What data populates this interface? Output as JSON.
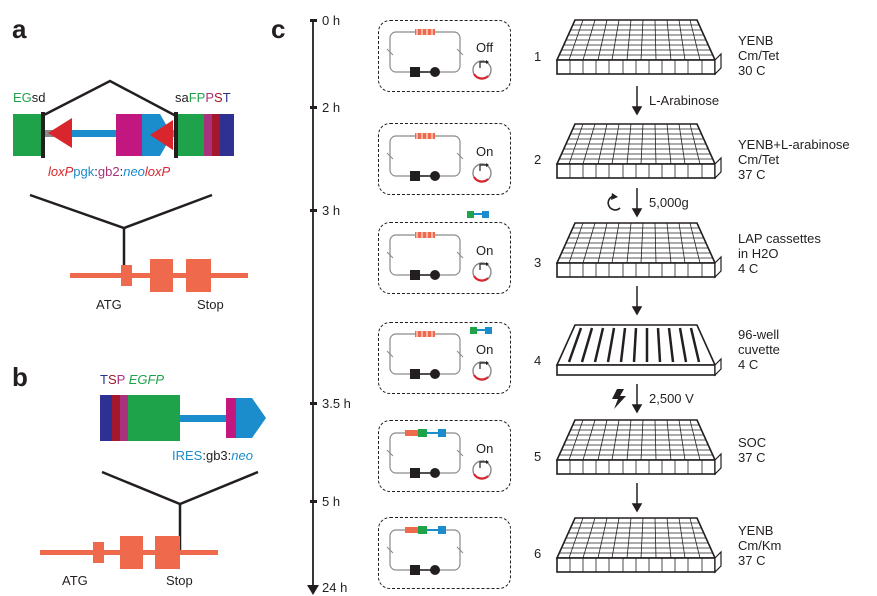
{
  "panels": {
    "a": "a",
    "b": "b",
    "c": "c"
  },
  "panel_a": {
    "top_left_label": {
      "E": "E",
      "G": "G",
      "sd": "sd"
    },
    "top_right_label": {
      "sa": "sa",
      "FP": "FP",
      "P": "P",
      "S": "S",
      "T": "T"
    },
    "cassette_label": {
      "loxP1": "loxP",
      "pgk": "pgk",
      "colon1": ":",
      "gb2": "gb2",
      "colon2": ":",
      "neo": "neo",
      "loxP2": "loxP"
    },
    "gene_start": "ATG",
    "gene_stop": "Stop"
  },
  "panel_b": {
    "top_label": {
      "T": "T",
      "S": "S",
      "P": "P",
      "egfp": "EGFP"
    },
    "bottom_label": {
      "ires": "IRES",
      "colon1": ":",
      "gb3": "gb3",
      "colon2": ":",
      "neo": "neo"
    },
    "gene_start": "ATG",
    "gene_stop": "Stop"
  },
  "panel_c": {
    "timeline": [
      "0 h",
      "2 h",
      "3 h",
      "3.5 h",
      "5 h",
      "24 h"
    ],
    "steps": [
      {
        "num": "1",
        "state": "Off",
        "conditions": [
          "YENB",
          "Cm/Tet",
          "30  C"
        ]
      },
      {
        "num": "2",
        "state": "On",
        "conditions": [
          "YENB+L-arabinose",
          "Cm/Tet",
          "37  C"
        ]
      },
      {
        "num": "3",
        "state": "On",
        "conditions": [
          "LAP cassettes",
          "in H2O",
          "4  C"
        ]
      },
      {
        "num": "4",
        "state": "On",
        "conditions": [
          "96-well",
          "cuvette",
          "4  C"
        ]
      },
      {
        "num": "5",
        "state": "On",
        "conditions": [
          "SOC",
          "37  C"
        ]
      },
      {
        "num": "6",
        "state": "",
        "conditions": [
          "YENB",
          "Cm/Km",
          "37  C"
        ]
      }
    ],
    "arrows": [
      "L-Arabinose",
      "5,000g",
      "",
      "2,500 V",
      ""
    ]
  },
  "colors": {
    "gene": "#ef6a4c",
    "green": "#1fa34a",
    "blue": "#1b8ccc",
    "magenta": "#c2177e",
    "red": "#d9262c",
    "navy": "#2e3192",
    "darkred": "#a3182c",
    "gray": "#8a8a8a"
  }
}
